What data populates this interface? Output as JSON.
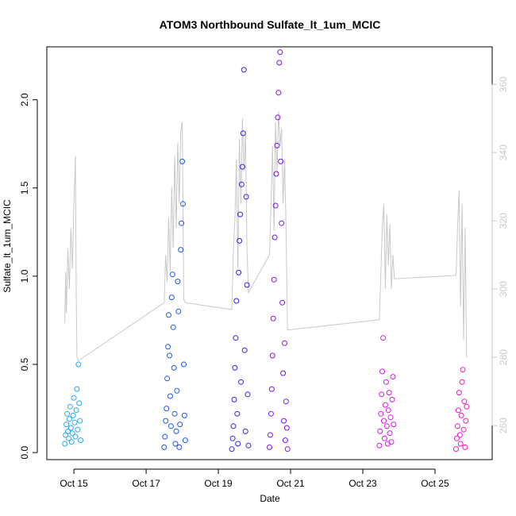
{
  "chart_data": {
    "type": "scatter",
    "title": "ATOM3 Northbound Sulfate_lt_1um_MCIC",
    "xlabel": "Date",
    "ylabel": "Sulfate_lt_1um_MCIC",
    "xlim": [
      "2017-10-14T06:00",
      "2017-10-26T14:00"
    ],
    "ylim": [
      -0.04,
      2.3
    ],
    "y2lim": [
      250,
      371
    ],
    "x_ticks": [
      {
        "date": "2017-10-15",
        "label": "Oct 15"
      },
      {
        "date": "2017-10-17",
        "label": "Oct 17"
      },
      {
        "date": "2017-10-19",
        "label": "Oct 19"
      },
      {
        "date": "2017-10-21",
        "label": "Oct 21"
      },
      {
        "date": "2017-10-23",
        "label": "Oct 23"
      },
      {
        "date": "2017-10-25",
        "label": "Oct 25"
      }
    ],
    "y_ticks": [
      {
        "value": 0.0,
        "label": "0.0"
      },
      {
        "value": 0.5,
        "label": "0.5"
      },
      {
        "value": 1.0,
        "label": "1.0"
      },
      {
        "value": 1.5,
        "label": "1.5"
      },
      {
        "value": 2.0,
        "label": "2.0"
      }
    ],
    "y2_ticks": [
      {
        "value": 260,
        "label": "260"
      },
      {
        "value": 280,
        "label": "280"
      },
      {
        "value": 300,
        "label": "300"
      },
      {
        "value": 320,
        "label": "320"
      },
      {
        "value": 340,
        "label": "340"
      },
      {
        "value": 360,
        "label": "360"
      }
    ],
    "grid": false,
    "series": [
      {
        "color": "#29a9f0",
        "points": [
          [
            "2017-10-14T18:00",
            0.05
          ],
          [
            "2017-10-14T18:30",
            0.1
          ],
          [
            "2017-10-14T19:00",
            0.16
          ],
          [
            "2017-10-14T19:30",
            0.22
          ],
          [
            "2017-10-14T20:00",
            0.12
          ],
          [
            "2017-10-14T20:30",
            0.08
          ],
          [
            "2017-10-14T21:00",
            0.19
          ],
          [
            "2017-10-14T21:30",
            0.26
          ],
          [
            "2017-10-14T22:00",
            0.14
          ],
          [
            "2017-10-14T22:30",
            0.06
          ],
          [
            "2017-10-14T23:00",
            0.11
          ],
          [
            "2017-10-14T23:30",
            0.21
          ],
          [
            "2017-10-15T00:00",
            0.31
          ],
          [
            "2017-10-15T00:30",
            0.17
          ],
          [
            "2017-10-15T01:00",
            0.09
          ],
          [
            "2017-10-15T01:30",
            0.24
          ],
          [
            "2017-10-15T02:00",
            0.36
          ],
          [
            "2017-10-15T02:30",
            0.13
          ],
          [
            "2017-10-15T03:00",
            0.5
          ],
          [
            "2017-10-15T03:30",
            0.28
          ],
          [
            "2017-10-15T04:00",
            0.18
          ],
          [
            "2017-10-15T04:30",
            0.07
          ]
        ]
      },
      {
        "color": "#1e56e6",
        "points": [
          [
            "2017-10-17T12:00",
            0.03
          ],
          [
            "2017-10-17T12:30",
            0.09
          ],
          [
            "2017-10-17T13:00",
            0.18
          ],
          [
            "2017-10-17T13:30",
            0.25
          ],
          [
            "2017-10-17T14:00",
            0.42
          ],
          [
            "2017-10-17T14:30",
            0.6
          ],
          [
            "2017-10-17T15:00",
            0.78
          ],
          [
            "2017-10-17T15:30",
            0.55
          ],
          [
            "2017-10-17T16:00",
            0.32
          ],
          [
            "2017-10-17T16:30",
            0.15
          ],
          [
            "2017-10-17T17:00",
            0.88
          ],
          [
            "2017-10-17T17:30",
            1.01
          ],
          [
            "2017-10-17T18:00",
            0.71
          ],
          [
            "2017-10-17T18:30",
            0.48
          ],
          [
            "2017-10-17T19:00",
            0.22
          ],
          [
            "2017-10-17T19:30",
            0.05
          ],
          [
            "2017-10-17T20:00",
            0.12
          ],
          [
            "2017-10-17T20:30",
            0.35
          ],
          [
            "2017-10-17T21:00",
            0.97
          ],
          [
            "2017-10-17T21:30",
            0.8
          ],
          [
            "2017-10-17T22:00",
            0.03
          ],
          [
            "2017-10-17T22:30",
            0.16
          ],
          [
            "2017-10-17T23:00",
            1.15
          ],
          [
            "2017-10-17T23:30",
            1.3
          ],
          [
            "2017-10-18T00:00",
            1.65
          ],
          [
            "2017-10-18T00:30",
            1.41
          ],
          [
            "2017-10-18T01:00",
            0.5
          ],
          [
            "2017-10-18T01:30",
            0.21
          ],
          [
            "2017-10-18T02:00",
            0.07
          ]
        ]
      },
      {
        "color": "#2f24e4",
        "points": [
          [
            "2017-10-19T09:00",
            0.02
          ],
          [
            "2017-10-19T09:30",
            0.08
          ],
          [
            "2017-10-19T10:00",
            0.15
          ],
          [
            "2017-10-19T10:30",
            0.3
          ],
          [
            "2017-10-19T11:00",
            0.48
          ],
          [
            "2017-10-19T11:30",
            0.65
          ],
          [
            "2017-10-19T12:00",
            0.86
          ],
          [
            "2017-10-19T12:30",
            0.22
          ],
          [
            "2017-10-19T13:00",
            0.05
          ],
          [
            "2017-10-19T13:30",
            1.02
          ],
          [
            "2017-10-19T14:00",
            1.2
          ],
          [
            "2017-10-19T14:30",
            1.35
          ],
          [
            "2017-10-19T15:00",
            0.4
          ],
          [
            "2017-10-19T15:30",
            1.52
          ],
          [
            "2017-10-19T16:00",
            1.62
          ],
          [
            "2017-10-19T16:30",
            1.81
          ],
          [
            "2017-10-19T17:00",
            2.17
          ],
          [
            "2017-10-19T17:30",
            0.58
          ],
          [
            "2017-10-19T18:00",
            0.12
          ],
          [
            "2017-10-19T18:30",
            1.45
          ],
          [
            "2017-10-19T19:00",
            0.95
          ],
          [
            "2017-10-19T19:30",
            0.33
          ],
          [
            "2017-10-19T20:00",
            0.04
          ]
        ]
      },
      {
        "color": "#7c14e8",
        "points": [
          [
            "2017-10-20T10:00",
            0.03
          ],
          [
            "2017-10-20T10:30",
            0.1
          ],
          [
            "2017-10-20T11:00",
            0.22
          ],
          [
            "2017-10-20T11:30",
            0.36
          ],
          [
            "2017-10-20T12:00",
            0.55
          ],
          [
            "2017-10-20T12:30",
            0.76
          ],
          [
            "2017-10-20T13:00",
            0.98
          ],
          [
            "2017-10-20T13:30",
            1.22
          ],
          [
            "2017-10-20T14:00",
            1.4
          ],
          [
            "2017-10-20T14:30",
            1.58
          ],
          [
            "2017-10-20T15:00",
            1.74
          ],
          [
            "2017-10-20T15:30",
            1.9
          ],
          [
            "2017-10-20T16:00",
            2.04
          ],
          [
            "2017-10-20T16:30",
            2.21
          ],
          [
            "2017-10-20T17:00",
            2.27
          ],
          [
            "2017-10-20T17:30",
            1.65
          ],
          [
            "2017-10-20T18:00",
            1.3
          ],
          [
            "2017-10-20T18:30",
            0.85
          ],
          [
            "2017-10-20T19:00",
            0.45
          ],
          [
            "2017-10-20T19:30",
            0.18
          ],
          [
            "2017-10-20T20:00",
            0.62
          ],
          [
            "2017-10-20T20:30",
            0.07
          ],
          [
            "2017-10-20T21:00",
            0.29
          ],
          [
            "2017-10-20T21:30",
            0.14
          ],
          [
            "2017-10-20T22:00",
            0.02
          ]
        ]
      },
      {
        "color": "#d318e8",
        "points": [
          [
            "2017-10-23T11:00",
            0.04
          ],
          [
            "2017-10-23T11:30",
            0.12
          ],
          [
            "2017-10-23T12:00",
            0.22
          ],
          [
            "2017-10-23T12:30",
            0.33
          ],
          [
            "2017-10-23T13:00",
            0.46
          ],
          [
            "2017-10-23T13:30",
            0.65
          ],
          [
            "2017-10-23T14:00",
            0.18
          ],
          [
            "2017-10-23T14:30",
            0.08
          ],
          [
            "2017-10-23T15:00",
            0.27
          ],
          [
            "2017-10-23T15:30",
            0.4
          ],
          [
            "2017-10-23T16:00",
            0.15
          ],
          [
            "2017-10-23T16:30",
            0.05
          ],
          [
            "2017-10-23T17:00",
            0.24
          ],
          [
            "2017-10-23T17:30",
            0.34
          ],
          [
            "2017-10-23T18:00",
            0.11
          ],
          [
            "2017-10-23T18:30",
            0.2
          ],
          [
            "2017-10-23T19:00",
            0.06
          ],
          [
            "2017-10-23T19:30",
            0.3
          ],
          [
            "2017-10-23T20:00",
            0.43
          ],
          [
            "2017-10-23T20:30",
            0.16
          ]
        ]
      },
      {
        "color": "#f413c8",
        "points": [
          [
            "2017-10-25T14:00",
            0.02
          ],
          [
            "2017-10-25T14:30",
            0.08
          ],
          [
            "2017-10-25T15:00",
            0.15
          ],
          [
            "2017-10-25T15:30",
            0.24
          ],
          [
            "2017-10-25T16:00",
            0.34
          ],
          [
            "2017-10-25T16:30",
            0.1
          ],
          [
            "2017-10-25T17:00",
            0.05
          ],
          [
            "2017-10-25T17:30",
            0.21
          ],
          [
            "2017-10-25T18:00",
            0.4
          ],
          [
            "2017-10-25T18:30",
            0.47
          ],
          [
            "2017-10-25T19:00",
            0.13
          ],
          [
            "2017-10-25T19:30",
            0.29
          ],
          [
            "2017-10-25T20:00",
            0.03
          ],
          [
            "2017-10-25T20:30",
            0.18
          ],
          [
            "2017-10-25T21:00",
            0.26
          ]
        ]
      }
    ],
    "secondary_line": {
      "color": "#c8c8c8",
      "points": [
        [
          "2017-10-14T18:00",
          290
        ],
        [
          "2017-10-14T18:30",
          305
        ],
        [
          "2017-10-14T19:00",
          293
        ],
        [
          "2017-10-14T20:00",
          312
        ],
        [
          "2017-10-14T21:00",
          300
        ],
        [
          "2017-10-14T22:00",
          318
        ],
        [
          "2017-10-14T23:00",
          306
        ],
        [
          "2017-10-15T00:00",
          325
        ],
        [
          "2017-10-15T01:00",
          339
        ],
        [
          "2017-10-15T01:30",
          300
        ],
        [
          "2017-10-15T02:00",
          280
        ],
        [
          "2017-10-15T03:00",
          279
        ],
        [
          "2017-10-17T12:00",
          296
        ],
        [
          "2017-10-17T13:00",
          310
        ],
        [
          "2017-10-17T14:00",
          302
        ],
        [
          "2017-10-17T15:00",
          321
        ],
        [
          "2017-10-17T16:00",
          305
        ],
        [
          "2017-10-17T17:00",
          330
        ],
        [
          "2017-10-17T18:00",
          312
        ],
        [
          "2017-10-17T19:00",
          339
        ],
        [
          "2017-10-17T20:00",
          318
        ],
        [
          "2017-10-17T21:00",
          343
        ],
        [
          "2017-10-17T22:00",
          325
        ],
        [
          "2017-10-17T23:00",
          346
        ],
        [
          "2017-10-18T00:00",
          349
        ],
        [
          "2017-10-18T00:30",
          325
        ],
        [
          "2017-10-18T01:00",
          297
        ],
        [
          "2017-10-18T02:00",
          296
        ],
        [
          "2017-10-19T09:00",
          294
        ],
        [
          "2017-10-19T10:00",
          312
        ],
        [
          "2017-10-19T11:00",
          320
        ],
        [
          "2017-10-19T12:00",
          338
        ],
        [
          "2017-10-19T13:00",
          306
        ],
        [
          "2017-10-19T14:00",
          344
        ],
        [
          "2017-10-19T15:00",
          325
        ],
        [
          "2017-10-19T16:00",
          350
        ],
        [
          "2017-10-19T17:00",
          335
        ],
        [
          "2017-10-19T18:00",
          346
        ],
        [
          "2017-10-19T19:00",
          312
        ],
        [
          "2017-10-19T20:00",
          299
        ],
        [
          "2017-10-20T10:00",
          310
        ],
        [
          "2017-10-20T11:00",
          325
        ],
        [
          "2017-10-20T12:00",
          342
        ],
        [
          "2017-10-20T13:00",
          317
        ],
        [
          "2017-10-20T14:00",
          349
        ],
        [
          "2017-10-20T15:00",
          334
        ],
        [
          "2017-10-20T16:00",
          352
        ],
        [
          "2017-10-20T17:00",
          342
        ],
        [
          "2017-10-20T18:00",
          347
        ],
        [
          "2017-10-20T19:00",
          325
        ],
        [
          "2017-10-20T20:00",
          338
        ],
        [
          "2017-10-20T21:00",
          318
        ],
        [
          "2017-10-20T22:00",
          288
        ],
        [
          "2017-10-23T11:00",
          291
        ],
        [
          "2017-10-23T12:00",
          305
        ],
        [
          "2017-10-23T13:00",
          318
        ],
        [
          "2017-10-23T14:00",
          325
        ],
        [
          "2017-10-23T15:00",
          300
        ],
        [
          "2017-10-23T16:00",
          322
        ],
        [
          "2017-10-23T17:00",
          307
        ],
        [
          "2017-10-23T18:00",
          319
        ],
        [
          "2017-10-23T19:00",
          300
        ],
        [
          "2017-10-23T20:00",
          310
        ],
        [
          "2017-10-23T21:00",
          303
        ],
        [
          "2017-10-25T14:00",
          304
        ],
        [
          "2017-10-25T15:00",
          318
        ],
        [
          "2017-10-25T16:00",
          329
        ],
        [
          "2017-10-25T17:00",
          295
        ],
        [
          "2017-10-25T18:00",
          325
        ],
        [
          "2017-10-25T19:00",
          285
        ],
        [
          "2017-10-25T20:00",
          318
        ],
        [
          "2017-10-25T21:00",
          280
        ]
      ]
    }
  }
}
